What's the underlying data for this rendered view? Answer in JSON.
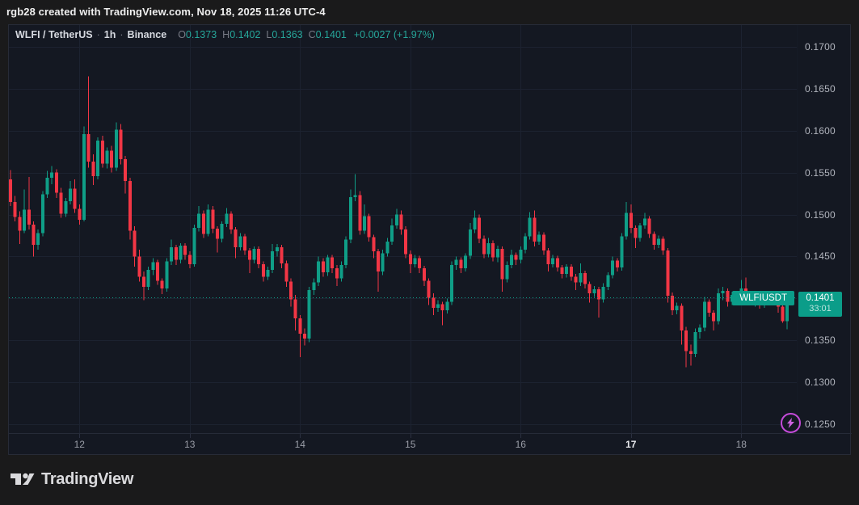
{
  "attribution": "rgb28 created with TradingView.com, Nov 18, 2025 11:26 UTC-4",
  "legend": {
    "symbol_title": "WLFI / TetherUS",
    "separator": "·",
    "interval": "1h",
    "exchange": "Binance",
    "ohlc": [
      {
        "label": "O",
        "value": "0.1373"
      },
      {
        "label": "H",
        "value": "0.1402"
      },
      {
        "label": "L",
        "value": "0.1363"
      },
      {
        "label": "C",
        "value": "0.1401"
      }
    ],
    "change": "+0.0027 (+1.97%)"
  },
  "price_scale": {
    "badge_symbol": "WLFIUSDT",
    "badge_price": "0.1401",
    "badge_countdown": "33:01"
  },
  "footer": {
    "logo_text": "TradingView"
  },
  "colors": {
    "background_outer": "#1a1a1b",
    "background_chart": "#141822",
    "grid": "#1c2230",
    "candle_up": "#0f9e87",
    "candle_down": "#f23645",
    "last_price_line": "#0f9e87",
    "axis_text": "#9b9ea8",
    "axis_text_bold": "#e8e9ed",
    "legend_text": "#d1d4dc",
    "legend_muted": "#787b86",
    "value_green": "#26a69a",
    "badge_teal": "#0b9d89",
    "boost_purple": "#c44bd9"
  },
  "chart_data": {
    "type": "candlestick",
    "title": "WLFI / TetherUS · 1h · Binance",
    "symbol": "WLFIUSDT",
    "exchange": "Binance",
    "interval": "1h",
    "last_price": 0.1401,
    "change": 0.0027,
    "change_pct": 1.97,
    "grid": true,
    "y_axis": {
      "side": "right",
      "min": 0.1238,
      "max": 0.1726,
      "ticks": [
        "0.1700",
        "0.1650",
        "0.1600",
        "0.1550",
        "0.1500",
        "0.1450",
        "0.1400",
        "0.1350",
        "0.1300",
        "0.1250"
      ]
    },
    "x_axis": {
      "labels": [
        {
          "text": "12",
          "bold": false
        },
        {
          "text": "13",
          "bold": false
        },
        {
          "text": "14",
          "bold": false
        },
        {
          "text": "15",
          "bold": false
        },
        {
          "text": "16",
          "bold": false
        },
        {
          "text": "17",
          "bold": true
        },
        {
          "text": "18",
          "bold": false
        }
      ]
    },
    "candles": [
      [
        0.1542,
        0.1553,
        0.151,
        0.1515
      ],
      [
        0.1515,
        0.1522,
        0.1492,
        0.1497
      ],
      [
        0.1497,
        0.1504,
        0.1465,
        0.1481
      ],
      [
        0.1481,
        0.153,
        0.1478,
        0.1506
      ],
      [
        0.1506,
        0.1545,
        0.1482,
        0.1488
      ],
      [
        0.1488,
        0.1492,
        0.145,
        0.1464
      ],
      [
        0.1464,
        0.1482,
        0.1458,
        0.1478
      ],
      [
        0.1478,
        0.1528,
        0.1474,
        0.1524
      ],
      [
        0.1524,
        0.1552,
        0.152,
        0.1544
      ],
      [
        0.1544,
        0.1558,
        0.1536,
        0.155
      ],
      [
        0.155,
        0.1554,
        0.152,
        0.1526
      ],
      [
        0.1526,
        0.1532,
        0.1496,
        0.1501
      ],
      [
        0.1501,
        0.152,
        0.1497,
        0.1516
      ],
      [
        0.1516,
        0.154,
        0.1512,
        0.1531
      ],
      [
        0.1531,
        0.1542,
        0.1502,
        0.1507
      ],
      [
        0.1507,
        0.1512,
        0.1488,
        0.1494
      ],
      [
        0.1494,
        0.1605,
        0.1492,
        0.1596
      ],
      [
        0.1596,
        0.1665,
        0.1556,
        0.1563
      ],
      [
        0.1563,
        0.1572,
        0.1535,
        0.1546
      ],
      [
        0.1546,
        0.1592,
        0.1542,
        0.1588
      ],
      [
        0.1588,
        0.1594,
        0.1556,
        0.1561
      ],
      [
        0.1561,
        0.158,
        0.1555,
        0.1576
      ],
      [
        0.1576,
        0.1582,
        0.155,
        0.1556
      ],
      [
        0.1556,
        0.161,
        0.1552,
        0.1601
      ],
      [
        0.1601,
        0.1608,
        0.156,
        0.1566
      ],
      [
        0.1566,
        0.157,
        0.1525,
        0.154
      ],
      [
        0.154,
        0.1544,
        0.147,
        0.1481
      ],
      [
        0.1481,
        0.1486,
        0.1438,
        0.145
      ],
      [
        0.145,
        0.1458,
        0.142,
        0.1426
      ],
      [
        0.1426,
        0.1432,
        0.1398,
        0.1414
      ],
      [
        0.1414,
        0.1438,
        0.141,
        0.1434
      ],
      [
        0.1434,
        0.1448,
        0.1428,
        0.1443
      ],
      [
        0.1443,
        0.1446,
        0.1416,
        0.1421
      ],
      [
        0.1421,
        0.1424,
        0.1405,
        0.1412
      ],
      [
        0.1412,
        0.1448,
        0.1408,
        0.1444
      ],
      [
        0.1444,
        0.147,
        0.144,
        0.1461
      ],
      [
        0.1461,
        0.1464,
        0.144,
        0.1446
      ],
      [
        0.1446,
        0.1466,
        0.1442,
        0.1463
      ],
      [
        0.1463,
        0.1466,
        0.1446,
        0.1452
      ],
      [
        0.1452,
        0.1456,
        0.1436,
        0.1441
      ],
      [
        0.1441,
        0.1488,
        0.1438,
        0.1484
      ],
      [
        0.1484,
        0.151,
        0.148,
        0.1501
      ],
      [
        0.1501,
        0.1505,
        0.1472,
        0.1477
      ],
      [
        0.1477,
        0.1512,
        0.1474,
        0.1506
      ],
      [
        0.1506,
        0.151,
        0.1478,
        0.1483
      ],
      [
        0.1483,
        0.1486,
        0.1455,
        0.1471
      ],
      [
        0.1471,
        0.1492,
        0.1467,
        0.1489
      ],
      [
        0.1489,
        0.1508,
        0.1485,
        0.1501
      ],
      [
        0.1501,
        0.1504,
        0.1477,
        0.1482
      ],
      [
        0.1482,
        0.1485,
        0.1448,
        0.1461
      ],
      [
        0.1461,
        0.1478,
        0.1457,
        0.1474
      ],
      [
        0.1474,
        0.1477,
        0.1452,
        0.1457
      ],
      [
        0.1457,
        0.146,
        0.143,
        0.1446
      ],
      [
        0.1446,
        0.1462,
        0.1442,
        0.1459
      ],
      [
        0.1459,
        0.1462,
        0.1436,
        0.1441
      ],
      [
        0.1441,
        0.1444,
        0.142,
        0.1426
      ],
      [
        0.1426,
        0.1438,
        0.1422,
        0.1434
      ],
      [
        0.1434,
        0.1465,
        0.143,
        0.1456
      ],
      [
        0.1456,
        0.1465,
        0.145,
        0.1461
      ],
      [
        0.1461,
        0.1464,
        0.1436,
        0.1442
      ],
      [
        0.1442,
        0.1445,
        0.1414,
        0.142
      ],
      [
        0.142,
        0.1424,
        0.139,
        0.1399
      ],
      [
        0.1399,
        0.1404,
        0.1362,
        0.1376
      ],
      [
        0.1376,
        0.138,
        0.133,
        0.1358
      ],
      [
        0.1358,
        0.1364,
        0.1344,
        0.1352
      ],
      [
        0.1352,
        0.1414,
        0.1348,
        0.141
      ],
      [
        0.141,
        0.1424,
        0.1404,
        0.1419
      ],
      [
        0.1419,
        0.145,
        0.1415,
        0.1444
      ],
      [
        0.1444,
        0.1448,
        0.1426,
        0.1431
      ],
      [
        0.1431,
        0.1452,
        0.1427,
        0.1449
      ],
      [
        0.1449,
        0.1452,
        0.143,
        0.1436
      ],
      [
        0.1436,
        0.144,
        0.1415,
        0.1424
      ],
      [
        0.1424,
        0.1444,
        0.142,
        0.144
      ],
      [
        0.144,
        0.1474,
        0.1436,
        0.147
      ],
      [
        0.147,
        0.153,
        0.1466,
        0.1521
      ],
      [
        0.1521,
        0.1548,
        0.1516,
        0.1523
      ],
      [
        0.1523,
        0.1528,
        0.1476,
        0.1481
      ],
      [
        0.1481,
        0.1512,
        0.1477,
        0.1498
      ],
      [
        0.1498,
        0.1501,
        0.1468,
        0.1473
      ],
      [
        0.1473,
        0.1476,
        0.1448,
        0.1456
      ],
      [
        0.1456,
        0.1459,
        0.1408,
        0.1432
      ],
      [
        0.1432,
        0.1458,
        0.1428,
        0.1454
      ],
      [
        0.1454,
        0.1472,
        0.145,
        0.1468
      ],
      [
        0.1468,
        0.1495,
        0.1464,
        0.1487
      ],
      [
        0.1487,
        0.1507,
        0.1483,
        0.15
      ],
      [
        0.15,
        0.1505,
        0.1476,
        0.1482
      ],
      [
        0.1482,
        0.1486,
        0.1448,
        0.1453
      ],
      [
        0.1453,
        0.1457,
        0.143,
        0.1441
      ],
      [
        0.1441,
        0.1452,
        0.1437,
        0.1448
      ],
      [
        0.1448,
        0.1451,
        0.143,
        0.1436
      ],
      [
        0.1436,
        0.1439,
        0.1415,
        0.1421
      ],
      [
        0.1421,
        0.1424,
        0.1392,
        0.1401
      ],
      [
        0.1401,
        0.1406,
        0.138,
        0.1389
      ],
      [
        0.1389,
        0.1398,
        0.1384,
        0.1393
      ],
      [
        0.1393,
        0.1396,
        0.1368,
        0.1386
      ],
      [
        0.1386,
        0.14,
        0.1382,
        0.1396
      ],
      [
        0.1396,
        0.1444,
        0.1392,
        0.144
      ],
      [
        0.144,
        0.145,
        0.1434,
        0.1446
      ],
      [
        0.1446,
        0.1449,
        0.143,
        0.1436
      ],
      [
        0.1436,
        0.1454,
        0.1432,
        0.1451
      ],
      [
        0.1451,
        0.149,
        0.1447,
        0.1482
      ],
      [
        0.1482,
        0.1505,
        0.1478,
        0.1496
      ],
      [
        0.1496,
        0.15,
        0.1466,
        0.1471
      ],
      [
        0.1471,
        0.1475,
        0.1448,
        0.1453
      ],
      [
        0.1453,
        0.1472,
        0.1449,
        0.1466
      ],
      [
        0.1466,
        0.1469,
        0.1444,
        0.1449
      ],
      [
        0.1449,
        0.1463,
        0.1443,
        0.1459
      ],
      [
        0.1459,
        0.1462,
        0.1408,
        0.1423
      ],
      [
        0.1423,
        0.1444,
        0.1419,
        0.144
      ],
      [
        0.144,
        0.1458,
        0.1436,
        0.1452
      ],
      [
        0.1452,
        0.1455,
        0.144,
        0.1446
      ],
      [
        0.1446,
        0.1462,
        0.1442,
        0.1458
      ],
      [
        0.1458,
        0.1478,
        0.1454,
        0.1474
      ],
      [
        0.1474,
        0.1503,
        0.147,
        0.1496
      ],
      [
        0.1496,
        0.1505,
        0.1462,
        0.1468
      ],
      [
        0.1468,
        0.148,
        0.1464,
        0.1476
      ],
      [
        0.1476,
        0.1479,
        0.1452,
        0.1457
      ],
      [
        0.1457,
        0.146,
        0.1432,
        0.1441
      ],
      [
        0.1441,
        0.1452,
        0.1437,
        0.1448
      ],
      [
        0.1448,
        0.1451,
        0.1432,
        0.1437
      ],
      [
        0.1437,
        0.144,
        0.1424,
        0.1429
      ],
      [
        0.1429,
        0.1441,
        0.1425,
        0.1438
      ],
      [
        0.1438,
        0.1441,
        0.1421,
        0.1426
      ],
      [
        0.1426,
        0.1429,
        0.141,
        0.1419
      ],
      [
        0.1419,
        0.1442,
        0.1415,
        0.143
      ],
      [
        0.143,
        0.1433,
        0.1412,
        0.1417
      ],
      [
        0.1417,
        0.142,
        0.1395,
        0.1406
      ],
      [
        0.1406,
        0.1415,
        0.1402,
        0.1411
      ],
      [
        0.1411,
        0.1414,
        0.1377,
        0.1399
      ],
      [
        0.1399,
        0.1418,
        0.1395,
        0.1414
      ],
      [
        0.1414,
        0.1431,
        0.141,
        0.1428
      ],
      [
        0.1428,
        0.145,
        0.1424,
        0.1445
      ],
      [
        0.1445,
        0.1448,
        0.1432,
        0.1437
      ],
      [
        0.1437,
        0.1478,
        0.1433,
        0.1474
      ],
      [
        0.1474,
        0.1515,
        0.147,
        0.1502
      ],
      [
        0.1502,
        0.1512,
        0.1478,
        0.1484
      ],
      [
        0.1484,
        0.1487,
        0.146,
        0.1472
      ],
      [
        0.1472,
        0.149,
        0.1468,
        0.1487
      ],
      [
        0.1487,
        0.1502,
        0.1483,
        0.1495
      ],
      [
        0.1495,
        0.1498,
        0.1472,
        0.1477
      ],
      [
        0.1477,
        0.148,
        0.1458,
        0.1464
      ],
      [
        0.1464,
        0.1475,
        0.146,
        0.1471
      ],
      [
        0.1471,
        0.1474,
        0.1452,
        0.1457
      ],
      [
        0.1457,
        0.146,
        0.1395,
        0.1403
      ],
      [
        0.1403,
        0.1407,
        0.138,
        0.1386
      ],
      [
        0.1386,
        0.1395,
        0.1381,
        0.1391
      ],
      [
        0.1391,
        0.1394,
        0.1345,
        0.1362
      ],
      [
        0.1362,
        0.1366,
        0.1318,
        0.1337
      ],
      [
        0.1337,
        0.1345,
        0.132,
        0.1334
      ],
      [
        0.1334,
        0.1364,
        0.133,
        0.136
      ],
      [
        0.136,
        0.1369,
        0.1352,
        0.1365
      ],
      [
        0.1365,
        0.1402,
        0.1361,
        0.1396
      ],
      [
        0.1396,
        0.1399,
        0.1378,
        0.1383
      ],
      [
        0.1383,
        0.1386,
        0.1362,
        0.1373
      ],
      [
        0.1373,
        0.1412,
        0.1369,
        0.1406
      ],
      [
        0.1406,
        0.1414,
        0.1398,
        0.1409
      ],
      [
        0.1409,
        0.1412,
        0.139,
        0.1396
      ],
      [
        0.1396,
        0.1408,
        0.1392,
        0.1404
      ],
      [
        0.1404,
        0.1407,
        0.1392,
        0.1398
      ],
      [
        0.1398,
        0.1422,
        0.1394,
        0.1412
      ],
      [
        0.1412,
        0.1425,
        0.14,
        0.1405
      ],
      [
        0.1405,
        0.1408,
        0.1393,
        0.1398
      ],
      [
        0.1398,
        0.1404,
        0.139,
        0.1401
      ],
      [
        0.1401,
        0.1404,
        0.1388,
        0.1393
      ],
      [
        0.1393,
        0.1402,
        0.1389,
        0.1399
      ],
      [
        0.1399,
        0.1407,
        0.1395,
        0.1404
      ],
      [
        0.1404,
        0.1407,
        0.1392,
        0.1397
      ],
      [
        0.1397,
        0.14,
        0.1383,
        0.139
      ],
      [
        0.139,
        0.1394,
        0.1371,
        0.1373
      ],
      [
        0.1373,
        0.1402,
        0.1363,
        0.1401
      ]
    ]
  }
}
